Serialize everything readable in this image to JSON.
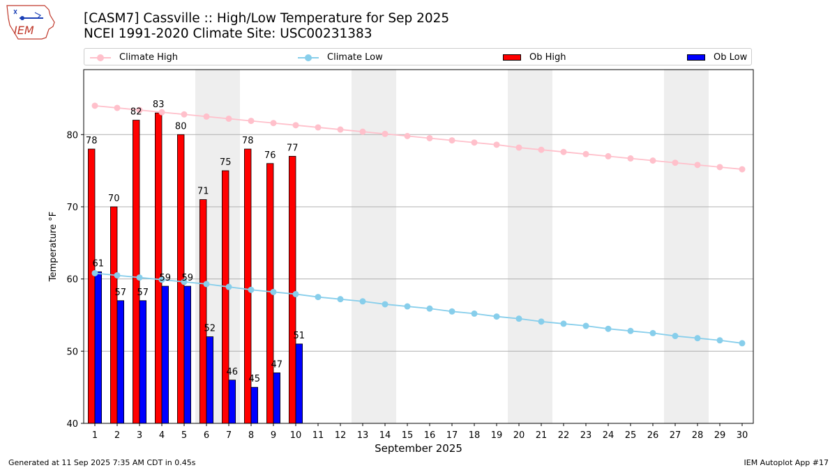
{
  "header": {
    "title_line1": "[CASM7] Cassville :: High/Low Temperature for Sep 2025",
    "title_line2": "NCEI 1991-2020 Climate Site: USC00231383",
    "logo_text": "IEM"
  },
  "legend": {
    "climate_high": "Climate High",
    "climate_low": "Climate Low",
    "ob_high": "Ob High",
    "ob_low": "Ob Low"
  },
  "footer": {
    "left": "Generated at 11 Sep 2025 7:35 AM CDT in 0.45s",
    "right": "IEM Autoplot App #17"
  },
  "colors": {
    "climate_high": "#ffc0cb",
    "climate_low": "#87ceeb",
    "ob_high": "#ff0000",
    "ob_low": "#0000ff",
    "weekend_shade": "#eeeeee",
    "grid": "#b0b0b0"
  },
  "chart_data": {
    "type": "bar",
    "title": "[CASM7] Cassville :: High/Low Temperature for Sep 2025",
    "subtitle": "NCEI 1991-2020 Climate Site: USC00231383",
    "xlabel": "September 2025",
    "ylabel": "Temperature °F",
    "ylim": [
      40,
      89
    ],
    "yticks": [
      40,
      50,
      60,
      70,
      80
    ],
    "xlim": [
      0.5,
      30.5
    ],
    "grid": "horizontal",
    "legend_position": "top",
    "shaded_weekend_days": [
      6,
      7,
      13,
      14,
      20,
      21,
      27,
      28
    ],
    "days": [
      1,
      2,
      3,
      4,
      5,
      6,
      7,
      8,
      9,
      10,
      11,
      12,
      13,
      14,
      15,
      16,
      17,
      18,
      19,
      20,
      21,
      22,
      23,
      24,
      25,
      26,
      27,
      28,
      29,
      30
    ],
    "series": [
      {
        "name": "Ob High",
        "kind": "bar",
        "days": [
          1,
          2,
          3,
          4,
          5,
          6,
          7,
          8,
          9,
          10
        ],
        "values": [
          78,
          70,
          82,
          83,
          80,
          71,
          75,
          78,
          76,
          77
        ]
      },
      {
        "name": "Ob Low",
        "kind": "bar",
        "days": [
          1,
          2,
          3,
          4,
          5,
          6,
          7,
          8,
          9,
          10
        ],
        "values": [
          61,
          57,
          57,
          59,
          59,
          52,
          46,
          45,
          47,
          51
        ]
      },
      {
        "name": "Climate High",
        "kind": "line",
        "values": [
          84.0,
          83.7,
          83.4,
          83.1,
          82.8,
          82.5,
          82.2,
          81.9,
          81.6,
          81.3,
          81.0,
          80.7,
          80.4,
          80.1,
          79.8,
          79.5,
          79.2,
          78.9,
          78.6,
          78.2,
          77.9,
          77.6,
          77.3,
          77.0,
          76.7,
          76.4,
          76.1,
          75.8,
          75.5,
          75.2
        ]
      },
      {
        "name": "Climate Low",
        "kind": "line",
        "values": [
          60.8,
          60.5,
          60.2,
          59.9,
          59.6,
          59.3,
          58.9,
          58.5,
          58.2,
          57.9,
          57.5,
          57.2,
          56.9,
          56.5,
          56.2,
          55.9,
          55.5,
          55.2,
          54.8,
          54.5,
          54.1,
          53.8,
          53.5,
          53.1,
          52.8,
          52.5,
          52.1,
          51.8,
          51.5,
          51.1
        ]
      }
    ]
  }
}
